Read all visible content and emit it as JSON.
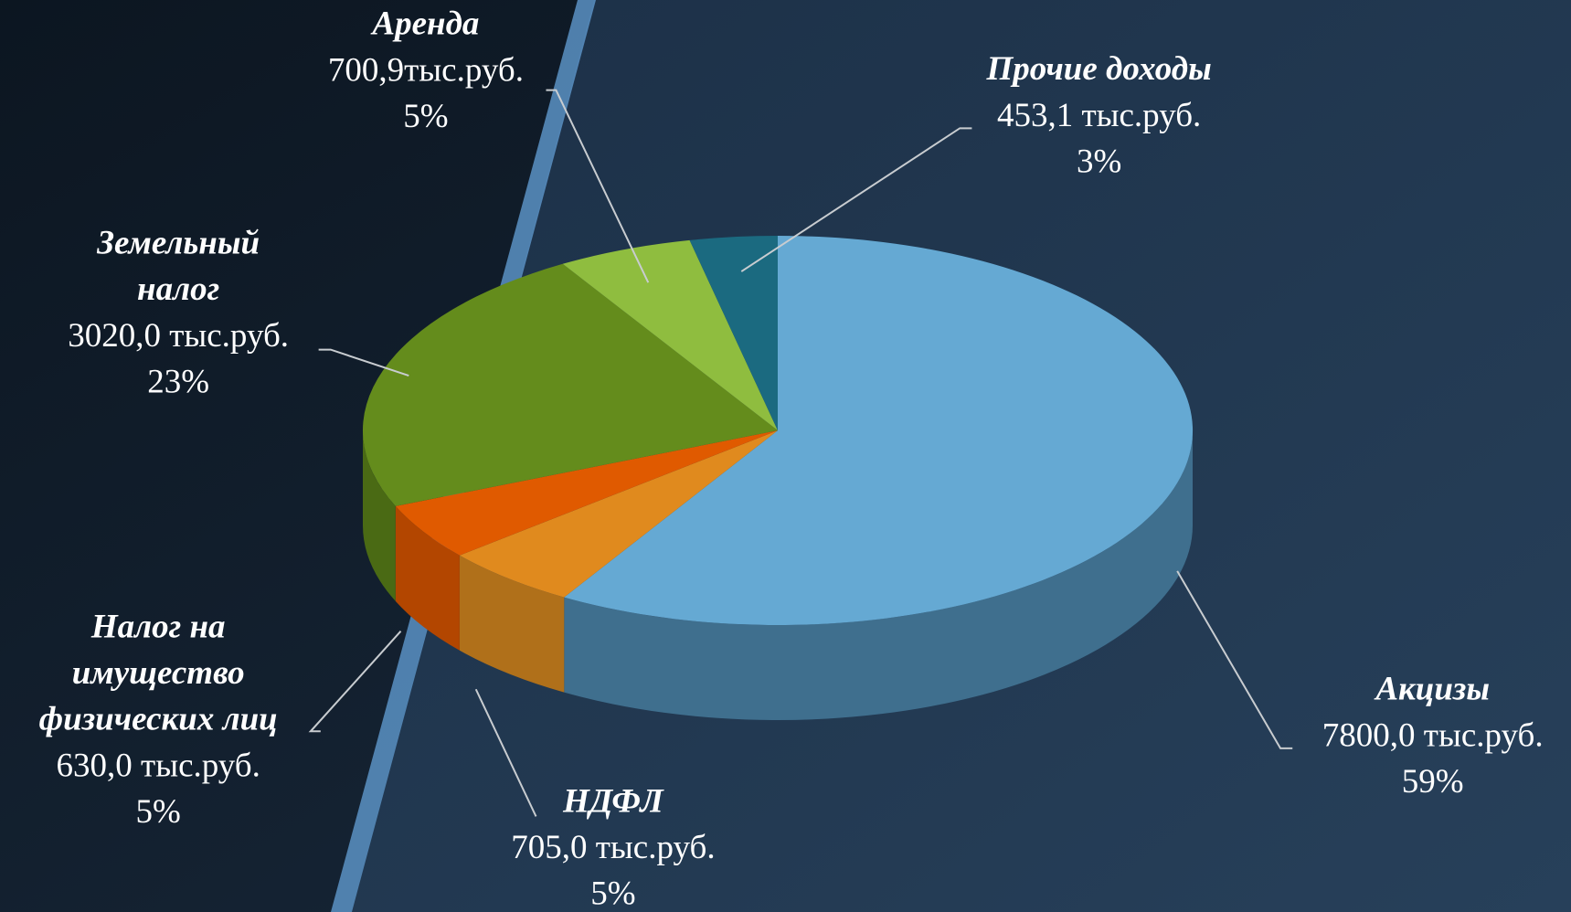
{
  "chart_data": {
    "type": "pie3d",
    "categories": [
      "Акцизы",
      "НДФЛ",
      "Налог на\nимущество\nфизических лиц",
      "Земельный\nналог",
      "Аренда",
      "Прочие доходы"
    ],
    "values": [
      7800.0,
      705.0,
      630.0,
      3020.0,
      700.9,
      453.1
    ],
    "value_labels": [
      "7800,0 тыс.руб.",
      "705,0 тыс.руб.",
      "630,0 тыс.руб.",
      "3020,0 тыс.руб.",
      "700,9тыс.руб.",
      "453,1 тыс.руб."
    ],
    "percent_labels": [
      "59%",
      "5%",
      "5%",
      "23%",
      "5%",
      "3%"
    ],
    "colors": [
      "#65a9d3",
      "#e08a1e",
      "#e05a00",
      "#648c1c",
      "#8fbd3f",
      "#1b6a80"
    ],
    "side_colors": [
      "#3f6f8e",
      "#b0701a",
      "#b34600",
      "#4a6a14",
      "#6c9230",
      "#134e5f"
    ]
  }
}
